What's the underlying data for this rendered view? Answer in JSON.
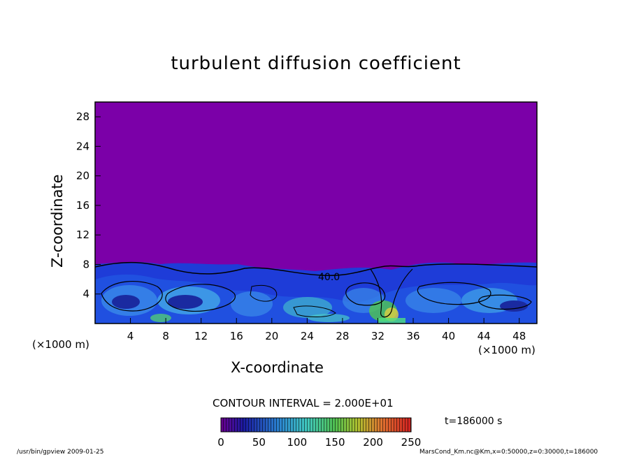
{
  "chart_data": {
    "type": "heatmap",
    "title": "turbulent diffusion coefficient",
    "xlabel": "X-coordinate",
    "ylabel": "Z-coordinate",
    "xunit_left": "(×1000 m)",
    "xunit_right": "(×1000 m)",
    "xlim": [
      0,
      50
    ],
    "ylim": [
      0,
      30
    ],
    "xticks": [
      "4",
      "8",
      "12",
      "16",
      "20",
      "24",
      "28",
      "32",
      "36",
      "40",
      "44",
      "48"
    ],
    "yticks": [
      "4",
      "8",
      "12",
      "16",
      "20",
      "24",
      "28"
    ],
    "contour_interval": "CONTOUR INTERVAL = 2.000E+01",
    "contour_label": "40.0",
    "time": "t=186000 s",
    "colorbar": {
      "min": 0,
      "max": 250,
      "ticks": [
        "0",
        "50",
        "100",
        "150",
        "200",
        "250"
      ]
    },
    "background_value_color": "#7b00a8",
    "mixed_layer_top_km": 8
  },
  "footer": {
    "left": "/usr/bin/gpview   2009-01-25",
    "right": "MarsCond_Km.nc@Km,x=0:50000,z=0:30000,t=186000"
  }
}
